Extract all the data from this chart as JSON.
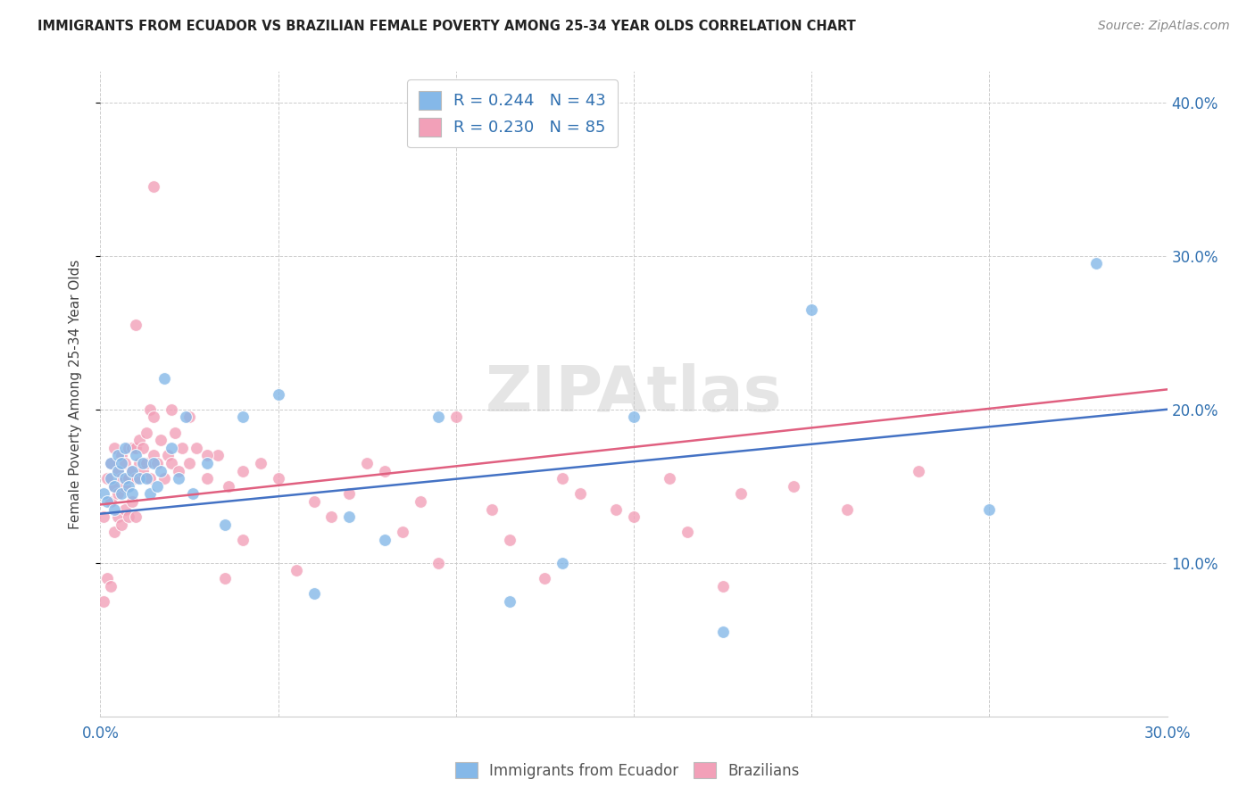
{
  "title": "IMMIGRANTS FROM ECUADOR VS BRAZILIAN FEMALE POVERTY AMONG 25-34 YEAR OLDS CORRELATION CHART",
  "source": "Source: ZipAtlas.com",
  "ylabel": "Female Poverty Among 25-34 Year Olds",
  "xlim": [
    0.0,
    0.3
  ],
  "ylim": [
    0.0,
    0.42
  ],
  "color_ecuador": "#85B8E8",
  "color_brazil": "#F2A0B8",
  "line_color_ecuador": "#4472C4",
  "line_color_brazil": "#E06080",
  "watermark": "ZIPAtlas",
  "ecuador_N": 43,
  "brazil_N": 85,
  "ecuador_R": 0.244,
  "brazil_R": 0.23,
  "ecuador_line_start_y": 0.132,
  "ecuador_line_end_y": 0.2,
  "brazil_line_start_y": 0.138,
  "brazil_line_end_y": 0.213,
  "ecuador_scatter_x": [
    0.001,
    0.002,
    0.003,
    0.003,
    0.004,
    0.004,
    0.005,
    0.005,
    0.006,
    0.006,
    0.007,
    0.007,
    0.008,
    0.009,
    0.009,
    0.01,
    0.011,
    0.012,
    0.013,
    0.014,
    0.015,
    0.016,
    0.017,
    0.018,
    0.02,
    0.022,
    0.024,
    0.026,
    0.03,
    0.035,
    0.04,
    0.05,
    0.06,
    0.07,
    0.08,
    0.095,
    0.115,
    0.13,
    0.15,
    0.175,
    0.2,
    0.25,
    0.28
  ],
  "ecuador_scatter_y": [
    0.145,
    0.14,
    0.155,
    0.165,
    0.135,
    0.15,
    0.16,
    0.17,
    0.145,
    0.165,
    0.155,
    0.175,
    0.15,
    0.145,
    0.16,
    0.17,
    0.155,
    0.165,
    0.155,
    0.145,
    0.165,
    0.15,
    0.16,
    0.22,
    0.175,
    0.155,
    0.195,
    0.145,
    0.165,
    0.125,
    0.195,
    0.21,
    0.08,
    0.13,
    0.115,
    0.195,
    0.075,
    0.1,
    0.195,
    0.055,
    0.265,
    0.135,
    0.295
  ],
  "brazil_scatter_x": [
    0.001,
    0.001,
    0.002,
    0.002,
    0.003,
    0.003,
    0.003,
    0.004,
    0.004,
    0.004,
    0.005,
    0.005,
    0.005,
    0.006,
    0.006,
    0.006,
    0.007,
    0.007,
    0.007,
    0.008,
    0.008,
    0.008,
    0.009,
    0.009,
    0.009,
    0.01,
    0.01,
    0.01,
    0.011,
    0.011,
    0.012,
    0.012,
    0.013,
    0.013,
    0.014,
    0.014,
    0.015,
    0.015,
    0.016,
    0.017,
    0.018,
    0.019,
    0.02,
    0.021,
    0.022,
    0.023,
    0.025,
    0.027,
    0.03,
    0.033,
    0.036,
    0.04,
    0.045,
    0.05,
    0.055,
    0.065,
    0.075,
    0.085,
    0.095,
    0.11,
    0.125,
    0.135,
    0.145,
    0.16,
    0.175,
    0.195,
    0.21,
    0.23,
    0.04,
    0.06,
    0.07,
    0.08,
    0.09,
    0.1,
    0.115,
    0.13,
    0.15,
    0.165,
    0.18,
    0.03,
    0.035,
    0.025,
    0.02,
    0.015,
    0.01
  ],
  "brazil_scatter_y": [
    0.13,
    0.075,
    0.155,
    0.09,
    0.14,
    0.165,
    0.085,
    0.15,
    0.175,
    0.12,
    0.145,
    0.16,
    0.13,
    0.155,
    0.17,
    0.125,
    0.15,
    0.165,
    0.135,
    0.155,
    0.175,
    0.13,
    0.16,
    0.175,
    0.14,
    0.155,
    0.175,
    0.13,
    0.165,
    0.18,
    0.16,
    0.175,
    0.165,
    0.185,
    0.155,
    0.2,
    0.17,
    0.195,
    0.165,
    0.18,
    0.155,
    0.17,
    0.165,
    0.185,
    0.16,
    0.175,
    0.165,
    0.175,
    0.155,
    0.17,
    0.15,
    0.115,
    0.165,
    0.155,
    0.095,
    0.13,
    0.165,
    0.12,
    0.1,
    0.135,
    0.09,
    0.145,
    0.135,
    0.155,
    0.085,
    0.15,
    0.135,
    0.16,
    0.16,
    0.14,
    0.145,
    0.16,
    0.14,
    0.195,
    0.115,
    0.155,
    0.13,
    0.12,
    0.145,
    0.17,
    0.09,
    0.195,
    0.2,
    0.345,
    0.255
  ]
}
